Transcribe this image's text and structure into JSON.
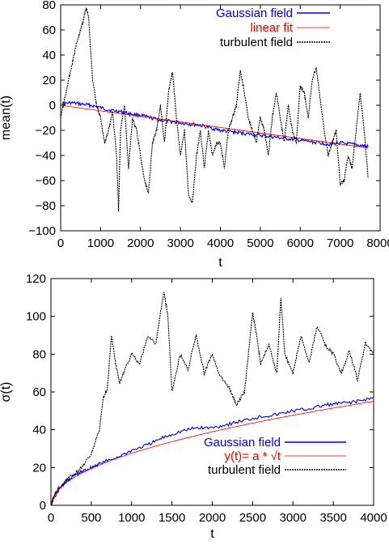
{
  "colors": {
    "gaussian": "#0000ee",
    "fit": "#ee0000",
    "turbulent": "#000000"
  },
  "chart_data": [
    {
      "type": "line",
      "xlabel": "t",
      "ylabel": "mean(t)",
      "xlim": [
        0,
        8000
      ],
      "ylim": [
        -100,
        80
      ],
      "xticks": [
        0,
        1000,
        2000,
        3000,
        4000,
        5000,
        6000,
        7000,
        8000
      ],
      "yticks": [
        -100,
        -80,
        -60,
        -40,
        -20,
        0,
        20,
        40,
        60,
        80
      ],
      "legend_position": "top-right",
      "series": [
        {
          "name": "Gaussian field",
          "color_key": "gaussian",
          "x": [
            0,
            250,
            500,
            750,
            1000,
            1250,
            1500,
            1750,
            2000,
            2250,
            2500,
            2750,
            3000,
            3250,
            3500,
            3750,
            4000,
            4250,
            4500,
            4750,
            5000,
            5250,
            5500,
            5750,
            6000,
            6250,
            6500,
            6750,
            7000,
            7250,
            7500,
            7700
          ],
          "y": [
            1,
            2,
            1,
            0,
            -2,
            -4,
            -5,
            -7,
            -8,
            -10,
            -12,
            -13,
            -14,
            -15,
            -16,
            -18,
            -20,
            -21,
            -22,
            -23,
            -24,
            -25,
            -26,
            -27,
            -28,
            -29,
            -30,
            -31,
            -30,
            -31,
            -32,
            -33
          ]
        },
        {
          "name": "linear fit",
          "color_key": "fit",
          "x": [
            0,
            7700
          ],
          "y": [
            0,
            -34
          ]
        },
        {
          "name": "turbulent field",
          "color_key": "turbulent",
          "x": [
            0,
            100,
            200,
            300,
            400,
            500,
            600,
            650,
            700,
            750,
            800,
            900,
            1000,
            1100,
            1200,
            1300,
            1400,
            1450,
            1500,
            1600,
            1700,
            1800,
            1900,
            2000,
            2100,
            2200,
            2300,
            2400,
            2500,
            2600,
            2700,
            2800,
            2900,
            3000,
            3100,
            3200,
            3300,
            3400,
            3500,
            3600,
            3700,
            3800,
            3900,
            4000,
            4100,
            4200,
            4300,
            4400,
            4500,
            4600,
            4700,
            4800,
            4900,
            5000,
            5100,
            5200,
            5300,
            5400,
            5500,
            5600,
            5700,
            5800,
            5900,
            6000,
            6100,
            6200,
            6300,
            6400,
            6500,
            6600,
            6700,
            6800,
            6900,
            7000,
            7100,
            7200,
            7300,
            7400,
            7500,
            7600,
            7700
          ],
          "y": [
            -10,
            5,
            20,
            35,
            50,
            60,
            72,
            78,
            70,
            45,
            20,
            0,
            -10,
            -30,
            -20,
            -5,
            -40,
            -84,
            -20,
            0,
            -50,
            -10,
            -20,
            -40,
            -60,
            -70,
            -30,
            -20,
            0,
            -30,
            10,
            27,
            -10,
            -40,
            -20,
            -70,
            -78,
            -40,
            -20,
            -50,
            -20,
            -40,
            -30,
            -30,
            -50,
            -20,
            -10,
            0,
            28,
            10,
            -10,
            -20,
            -30,
            -10,
            -20,
            -40,
            -10,
            10,
            -10,
            -30,
            0,
            -20,
            -30,
            15,
            10,
            -10,
            20,
            30,
            5,
            -20,
            -40,
            -30,
            -20,
            -63,
            -60,
            -40,
            -50,
            -20,
            10,
            -20,
            -58
          ]
        }
      ]
    },
    {
      "type": "line",
      "xlabel": "t",
      "ylabel": "σ(t)",
      "xlim": [
        0,
        4000
      ],
      "ylim": [
        0,
        120
      ],
      "xticks": [
        0,
        500,
        1000,
        1500,
        2000,
        2500,
        3000,
        3500,
        4000
      ],
      "yticks": [
        0,
        20,
        40,
        60,
        80,
        100,
        120
      ],
      "legend_position": "bottom-right",
      "series": [
        {
          "name": "Gaussian field",
          "color_key": "gaussian",
          "x": [
            0,
            50,
            100,
            200,
            300,
            400,
            500,
            600,
            800,
            1000,
            1200,
            1400,
            1600,
            1800,
            2000,
            2200,
            2400,
            2600,
            2800,
            3000,
            3200,
            3400,
            3600,
            3800,
            4000
          ],
          "y": [
            0,
            6,
            9,
            13,
            16,
            18,
            20,
            22,
            25,
            29,
            32,
            36,
            39,
            41,
            41,
            43,
            45,
            47,
            48,
            50,
            51,
            53,
            54,
            55,
            57
          ]
        },
        {
          "name": "y(t)= a * √t",
          "color_key": "fit",
          "function": "sqrt",
          "a": 0.87,
          "x": [
            0,
            4000
          ],
          "y": [
            0,
            55
          ]
        },
        {
          "name": "turbulent field",
          "color_key": "turbulent",
          "x": [
            0,
            50,
            100,
            200,
            300,
            400,
            500,
            600,
            650,
            700,
            750,
            800,
            850,
            900,
            1000,
            1100,
            1200,
            1300,
            1350,
            1400,
            1450,
            1500,
            1600,
            1700,
            1800,
            1900,
            2000,
            2100,
            2200,
            2250,
            2300,
            2400,
            2500,
            2550,
            2600,
            2700,
            2800,
            2850,
            2900,
            3000,
            3100,
            3200,
            3300,
            3400,
            3500,
            3600,
            3700,
            3800,
            3900,
            4000
          ],
          "y": [
            0,
            5,
            8,
            14,
            17,
            21,
            27,
            40,
            57,
            62,
            90,
            75,
            65,
            70,
            80,
            75,
            90,
            85,
            100,
            113,
            100,
            60,
            80,
            72,
            90,
            70,
            80,
            68,
            63,
            58,
            53,
            60,
            102,
            90,
            75,
            85,
            70,
            110,
            80,
            70,
            90,
            75,
            95,
            85,
            80,
            70,
            82,
            66,
            86,
            80
          ]
        }
      ]
    }
  ]
}
